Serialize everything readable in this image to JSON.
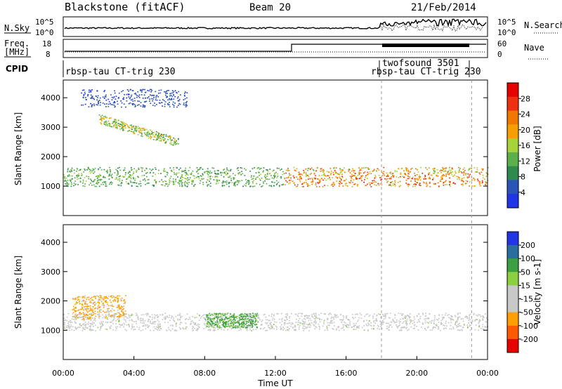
{
  "header": {
    "station": "Blackstone (fitACF)",
    "beam": "Beam 20",
    "date": "21/Feb/2014"
  },
  "noise_panel": {
    "left_label": "N.Sky",
    "right_label": "N.Search",
    "tick_high": "10^5",
    "tick_low": "10^0"
  },
  "freq_panel": {
    "left_label_line1": "Freq.",
    "left_label_line2": "[MHz]",
    "tick_high": "18",
    "tick_low": "8",
    "right_label": "Nave",
    "right_tick_high": "60",
    "right_tick_low": "0"
  },
  "cpid_panel": {
    "label": "CPID",
    "segments": [
      {
        "text": "rbsp-tau CT-trig 230"
      },
      {
        "text": "twofsound 3501"
      },
      {
        "text": "rbsp-tau CT-trig 230"
      }
    ]
  },
  "colors": {
    "power_scale": [
      "#1f35e6",
      "#2a55b8",
      "#2f8a4e",
      "#5ab04a",
      "#a8d23a",
      "#f5a000",
      "#f07800",
      "#ee3010",
      "#e60000"
    ],
    "velocity_scale": [
      "#e60000",
      "#ff5a00",
      "#ffa000",
      "#c8c8c8",
      "#c8c8c8",
      "#8ad040",
      "#3da040",
      "#2a6ea0",
      "#1f35e6"
    ],
    "scatter_band": "#c8c8c8"
  },
  "chart_data": [
    {
      "type": "heatmap",
      "panel": "power",
      "ylabel": "Slant Range [km]",
      "ylim": [
        0,
        4600
      ],
      "yticks": [
        "1000",
        "2000",
        "3000",
        "4000"
      ],
      "xlim_hours": [
        0,
        24
      ],
      "xticks": [
        "00:00",
        "04:00",
        "08:00",
        "12:00",
        "16:00",
        "20:00",
        "00:00"
      ],
      "colorbar": {
        "label": "Power [dB]",
        "ticks": [
          "28",
          "24",
          "20",
          "16",
          "12",
          "8",
          "4"
        ],
        "range": [
          0,
          30
        ]
      },
      "features": [
        {
          "name": "main echo band",
          "start_hr": 0.0,
          "end_hr": 24.0,
          "range_km": [
            1000,
            1650
          ],
          "peak_db": 28
        },
        {
          "name": "dawn arc",
          "start_hr": 2.0,
          "end_hr": 6.5,
          "range_km": [
            2500,
            3500
          ],
          "peak_db": 20
        },
        {
          "name": "upper scatter",
          "start_hr": 1.0,
          "end_hr": 7.0,
          "range_km": [
            3700,
            4300
          ],
          "peak_db": 6
        }
      ]
    },
    {
      "type": "heatmap",
      "panel": "velocity",
      "ylabel": "Slant Range [km]",
      "xlabel": "Time UT",
      "ylim": [
        0,
        4600
      ],
      "yticks": [
        "1000",
        "2000",
        "3000",
        "4000"
      ],
      "xlim_hours": [
        0,
        24
      ],
      "xticks": [
        "00:00",
        "04:00",
        "08:00",
        "12:00",
        "16:00",
        "20:00",
        "00:00"
      ],
      "colorbar": {
        "label": "Velocity [m s-1]",
        "ticks": [
          "200",
          "100",
          "50",
          "15",
          "-15",
          "-50",
          "-100",
          "-200"
        ],
        "range": [
          -250,
          250
        ]
      },
      "features": [
        {
          "name": "ground scatter",
          "start_hr": 0.0,
          "end_hr": 24.0,
          "range_km": [
            1000,
            1600
          ],
          "velocity_ms": 0
        },
        {
          "name": "evening flow",
          "start_hr": 8.0,
          "end_hr": 11.0,
          "range_km": [
            1100,
            1600
          ],
          "velocity_ms": 100
        },
        {
          "name": "morning flow",
          "start_hr": 0.5,
          "end_hr": 3.5,
          "range_km": [
            1400,
            2200
          ],
          "velocity_ms": -100
        }
      ]
    }
  ],
  "x_axis": {
    "label": "Time UT"
  }
}
